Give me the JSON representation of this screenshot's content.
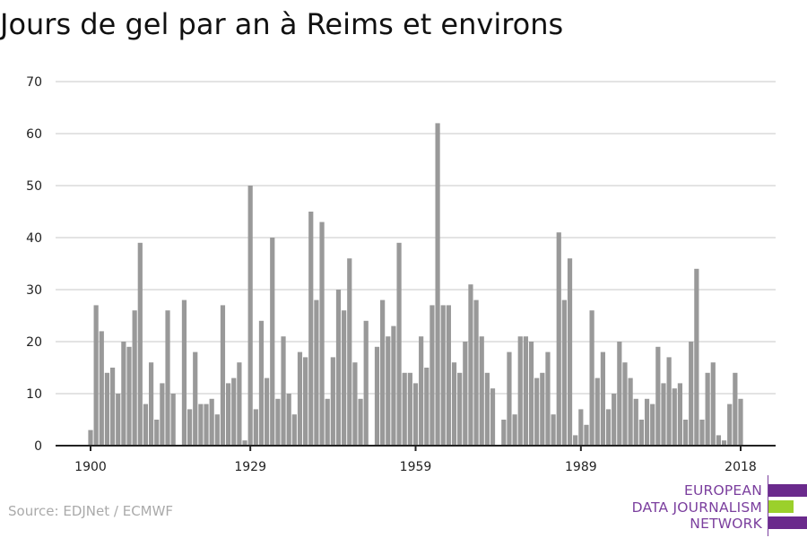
{
  "chart_data": {
    "type": "bar",
    "title": "Jours de gel par an à Reims et environs",
    "xlabel": "",
    "ylabel": "",
    "x_start": 1900,
    "values": [
      3,
      27,
      22,
      14,
      15,
      10,
      20,
      19,
      26,
      39,
      8,
      16,
      5,
      12,
      26,
      10,
      0,
      28,
      7,
      18,
      8,
      8,
      9,
      6,
      27,
      12,
      13,
      16,
      1,
      50,
      7,
      24,
      13,
      40,
      9,
      21,
      10,
      6,
      18,
      17,
      45,
      28,
      43,
      9,
      17,
      30,
      26,
      36,
      16,
      9,
      24,
      0,
      19,
      28,
      21,
      23,
      39,
      14,
      14,
      12,
      21,
      15,
      27,
      62,
      27,
      27,
      16,
      14,
      20,
      31,
      28,
      21,
      14,
      11,
      0,
      5,
      18,
      6,
      21,
      21,
      20,
      13,
      14,
      18,
      6,
      41,
      28,
      36,
      2,
      7,
      4,
      26,
      13,
      18,
      7,
      10,
      20,
      16,
      13,
      9,
      5,
      9,
      8,
      19,
      12,
      17,
      11,
      12,
      5,
      20,
      34,
      5,
      14,
      16,
      2,
      1,
      8,
      14,
      9
    ],
    "x_ticks": [
      "1900",
      "1929",
      "1959",
      "1989",
      "2018"
    ],
    "y_ticks": [
      "0",
      "10",
      "20",
      "30",
      "40",
      "50",
      "60",
      "70"
    ],
    "ylim": [
      0,
      70
    ],
    "grid": true,
    "bar_color": "#999999"
  },
  "source": "Source: EDJNet / ECMWF",
  "logo": {
    "lines": [
      "EUROPEAN",
      "DATA JOURNALISM",
      "NETWORK"
    ],
    "purple": "#6a2a8c",
    "green": "#9bd02b"
  }
}
